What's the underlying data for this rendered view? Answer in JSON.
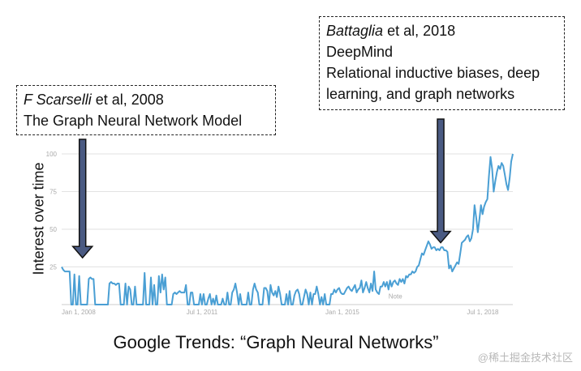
{
  "callouts": {
    "scarselli": {
      "author": "F Scarselli",
      "rest": " et al, 2008",
      "line2": "The Graph Neural Network Model"
    },
    "battaglia": {
      "author": "Battaglia",
      "rest": " et al, 2018",
      "line2": "DeepMind",
      "line3": "Relational inductive biases, deep",
      "line4": "learning, and graph networks"
    }
  },
  "caption": "Google Trends: “Graph Neural Networks”",
  "watermark": "@稀土掘金技术社区",
  "chart_data": {
    "type": "line",
    "title": "",
    "xlabel": "",
    "ylabel": "Interest over time",
    "ylim": [
      0,
      100
    ],
    "yticks": [
      "100",
      "75",
      "50",
      "25"
    ],
    "xticks": [
      {
        "label": "Jan 1, 2008",
        "x": 2008.0
      },
      {
        "label": "Jul 1, 2011",
        "x": 2011.5
      },
      {
        "label": "Jan 1, 2015",
        "x": 2015.0
      },
      {
        "label": "Jul 1, 2018",
        "x": 2018.5
      }
    ],
    "xlim": [
      2008.0,
      2019.25
    ],
    "grid": true,
    "note": "Note",
    "note_x": 2016.15,
    "series_color": "#4a9fd4",
    "arrow_color": "#4a5a82",
    "arrows": [
      {
        "x": 2008.52,
        "value": 30
      },
      {
        "x": 2017.45,
        "value": 40
      }
    ],
    "series": [
      {
        "values": [
          25,
          23,
          22,
          22,
          22,
          22,
          0,
          0,
          20,
          0,
          0,
          19,
          0,
          0,
          0,
          0,
          0,
          17,
          18,
          17,
          17,
          0,
          0,
          0,
          0,
          0,
          0,
          0,
          0,
          0,
          14,
          15,
          14,
          14,
          13,
          14,
          14,
          0,
          0,
          0,
          14,
          0,
          12,
          10,
          0,
          0,
          12,
          0,
          0,
          0,
          0,
          0,
          21,
          0,
          0,
          0,
          18,
          0,
          13,
          0,
          0,
          19,
          8,
          20,
          10,
          18,
          0,
          0,
          0,
          0,
          7,
          8,
          7,
          8,
          9,
          8,
          8,
          8,
          13,
          0,
          0,
          8,
          8,
          0,
          0,
          0,
          0,
          7,
          0,
          7,
          0,
          0,
          4,
          7,
          0,
          4,
          0,
          6,
          0,
          0,
          0,
          4,
          0,
          0,
          8,
          0,
          0,
          8,
          10,
          14,
          8,
          0,
          7,
          0,
          0,
          0,
          0,
          8,
          0,
          0,
          10,
          14,
          10,
          8,
          0,
          0,
          0,
          11,
          11,
          9,
          0,
          13,
          8,
          6,
          9,
          5,
          12,
          7,
          0,
          0,
          0,
          7,
          0,
          9,
          0,
          0,
          6,
          9,
          10,
          7,
          0,
          0,
          5,
          10,
          7,
          0,
          8,
          0,
          7,
          7,
          12,
          7,
          0,
          5,
          0,
          7,
          0,
          0,
          0,
          7,
          7,
          10,
          8,
          10,
          11,
          8,
          7,
          7,
          9,
          11,
          12,
          10,
          9,
          11,
          13,
          8,
          10,
          11,
          16,
          8,
          11,
          15,
          11,
          8,
          14,
          9,
          22,
          10,
          8,
          7,
          12,
          12,
          15,
          12,
          15,
          10,
          16,
          12,
          15,
          16,
          14,
          13,
          17,
          15,
          17,
          14,
          19,
          18,
          20,
          20,
          22,
          21,
          22,
          25,
          26,
          30,
          34,
          33,
          36,
          39,
          42,
          40,
          37,
          38,
          38,
          36,
          37,
          36,
          38,
          38,
          36,
          36,
          35,
          24,
          26,
          22,
          24,
          26,
          28,
          27,
          34,
          41,
          42,
          43,
          45,
          46,
          42,
          44,
          50,
          66,
          58,
          48,
          56,
          66,
          60,
          65,
          68,
          70,
          85,
          98,
          90,
          75,
          82,
          88,
          92,
          90,
          94,
          92,
          86,
          80,
          76,
          84,
          95,
          100
        ]
      }
    ]
  }
}
